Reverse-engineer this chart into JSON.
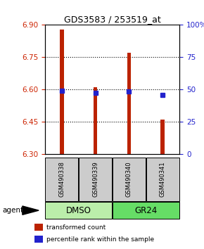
{
  "title": "GDS3583 / 253519_at",
  "samples": [
    "GSM490338",
    "GSM490339",
    "GSM490340",
    "GSM490341"
  ],
  "bar_bottom": 6.3,
  "bar_tops": [
    6.88,
    6.61,
    6.77,
    6.46
  ],
  "percentile_values": [
    6.595,
    6.585,
    6.592,
    6.574
  ],
  "ylim_left": [
    6.3,
    6.9
  ],
  "ylim_right": [
    0,
    100
  ],
  "yticks_left": [
    6.3,
    6.45,
    6.6,
    6.75,
    6.9
  ],
  "yticks_right": [
    0,
    25,
    50,
    75,
    100
  ],
  "ytick_labels_right": [
    "0",
    "25",
    "50",
    "75",
    "100%"
  ],
  "hgrid_ticks": [
    6.45,
    6.6,
    6.75
  ],
  "bar_color": "#bb2200",
  "dot_color": "#2222cc",
  "axis_color_left": "#cc2200",
  "axis_color_right": "#2222cc",
  "sample_box_color": "#cccccc",
  "group_spans": [
    {
      "start": 0,
      "end": 1,
      "label": "DMSO",
      "color": "#bbeeaa"
    },
    {
      "start": 2,
      "end": 3,
      "label": "GR24",
      "color": "#66dd66"
    }
  ],
  "legend_items": [
    {
      "color": "#bb2200",
      "label": "transformed count"
    },
    {
      "color": "#2222cc",
      "label": "percentile rank within the sample"
    }
  ]
}
